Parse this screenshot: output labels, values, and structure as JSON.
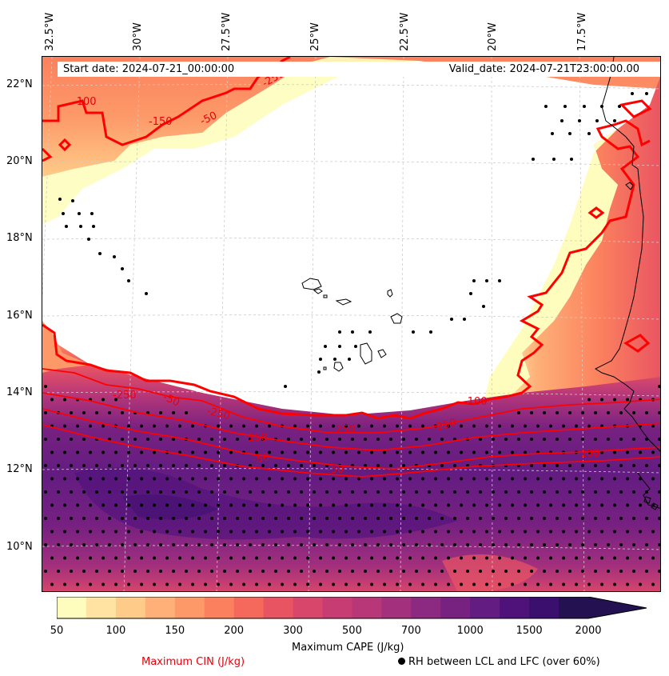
{
  "header": {
    "start_date": "Start date: 2024-07-21_00:00:00",
    "valid_date": "Valid_date: 2024-07-21T23:00:00.00"
  },
  "axes": {
    "lon_labels": [
      "32.5°W",
      "30°W",
      "27.5°W",
      "25°W",
      "22.5°W",
      "20°W",
      "17.5°W"
    ],
    "lat_labels": [
      "22°N",
      "20°N",
      "18°N",
      "16°N",
      "14°N",
      "12°N",
      "10°N"
    ]
  },
  "colorbar": {
    "title": "Maximum CAPE (J/kg)",
    "ticks": [
      "50",
      "100",
      "150",
      "200",
      "300",
      "500",
      "700",
      "1000",
      "1500",
      "2000"
    ],
    "levels": [
      50,
      75,
      100,
      125,
      150,
      175,
      200,
      250,
      300,
      400,
      500,
      600,
      700,
      850,
      1000,
      1250,
      1500,
      1750,
      2000
    ],
    "colors": [
      "#fefdbe",
      "#fee3a2",
      "#fecb88",
      "#feb078",
      "#fd9969",
      "#fb815e",
      "#f4695c",
      "#e95462",
      "#d8466b",
      "#c73c72",
      "#b73779",
      "#a2307d",
      "#8c2981",
      "#772181",
      "#631c81",
      "#4f127b",
      "#3a0f6e",
      "#231151"
    ]
  },
  "legend": {
    "cin_label": "Maximum CIN (J/kg)",
    "rh_label": "RH between LCL and LFC (over 60%)"
  },
  "cin_contour_labels": [
    "-100",
    "-150",
    "-50",
    "-250",
    "-250",
    "-50",
    "-250",
    "-150",
    "-50",
    "-250",
    "-100",
    "-250",
    "-100",
    "-50"
  ],
  "colors": {
    "cin_contour": "#ff0000",
    "coastline": "#000000",
    "gridline": "#cccccc"
  }
}
